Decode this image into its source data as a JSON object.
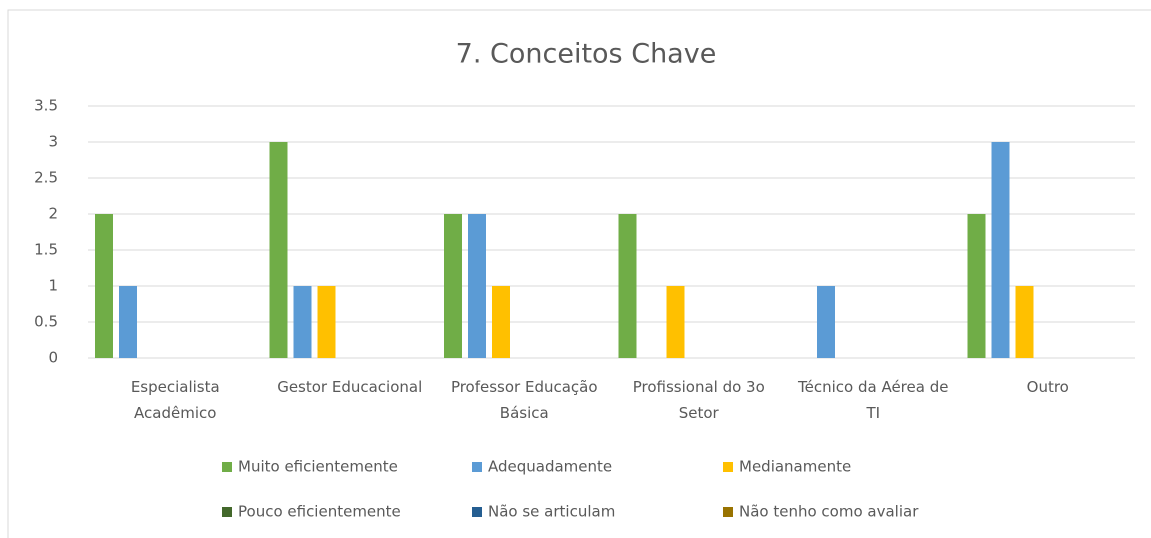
{
  "chart_data": {
    "type": "bar",
    "title": "7. Conceitos Chave",
    "categories": [
      "Especialista Acadêmico",
      "Gestor Educacional",
      "Professor Educação Básica",
      "Profissional do 3o Setor",
      "Técnico da Aérea de TI",
      "Outro"
    ],
    "series": [
      {
        "name": "Muito eficientemente",
        "color": "#70ad47",
        "values": [
          2,
          3,
          2,
          2,
          0,
          2
        ]
      },
      {
        "name": "Adequadamente",
        "color": "#5b9bd5",
        "values": [
          1,
          1,
          2,
          0,
          1,
          3
        ]
      },
      {
        "name": "Medianamente",
        "color": "#ffc000",
        "values": [
          0,
          1,
          1,
          1,
          0,
          1
        ]
      },
      {
        "name": "Pouco eficientemente",
        "color": "#43682b",
        "values": [
          0,
          0,
          0,
          0,
          0,
          0
        ]
      },
      {
        "name": "Não se articulam",
        "color": "#255e91",
        "values": [
          0,
          0,
          0,
          0,
          0,
          0
        ]
      },
      {
        "name": "Não tenho como avaliar",
        "color": "#997300",
        "values": [
          0,
          0,
          0,
          0,
          0,
          0
        ]
      }
    ],
    "ylim": [
      0,
      3.5
    ],
    "yticks": [
      0,
      0.5,
      1,
      1.5,
      2,
      2.5,
      3,
      3.5
    ],
    "grid": true,
    "legend": "bottom"
  }
}
